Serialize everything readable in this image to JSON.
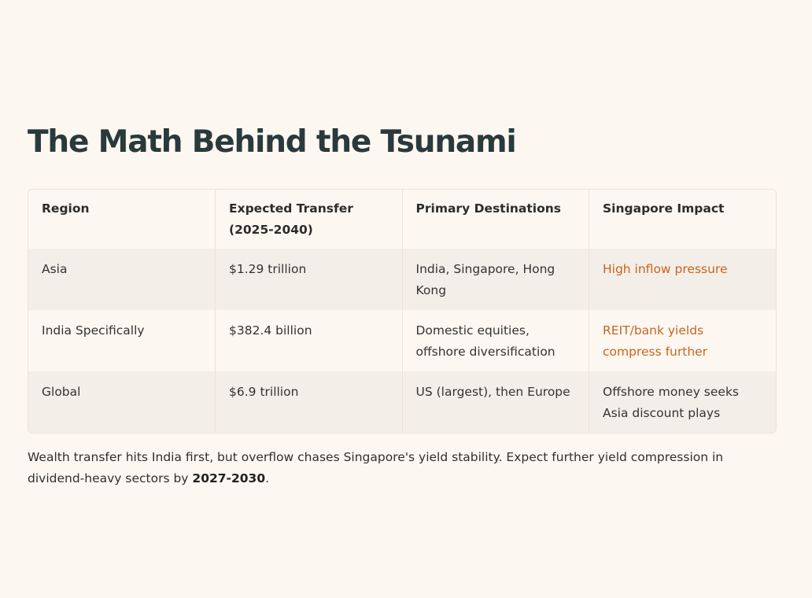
{
  "title": "The Math Behind the Tsunami",
  "table": {
    "headers": [
      "Region",
      "Expected Transfer (2025-2040)",
      "Primary Destinations",
      "Singapore Impact"
    ],
    "rows": [
      [
        "Asia",
        "$1.29 trillion",
        "India, Singapore, Hong Kong",
        "High inflow pressure"
      ],
      [
        "India Specifically",
        "$382.4 billion",
        "Domestic equities, offshore diversification",
        "REIT/bank yields compress further"
      ],
      [
        "Global",
        "$6.9 trillion",
        "US (largest), then Europe",
        "Offshore money seeks Asia discount plays"
      ]
    ]
  },
  "note": {
    "text": "Wealth transfer hits India first, but overflow chases Singapore's yield stability. Expect further yield compression in dividend-heavy sectors by ",
    "emphasis": "2027-2030",
    "end": "."
  },
  "colors": {
    "background": "#fdf7f1",
    "accent": "#c8641e",
    "heading": "#2a3a3c",
    "row_alt": "#f4eee8"
  }
}
